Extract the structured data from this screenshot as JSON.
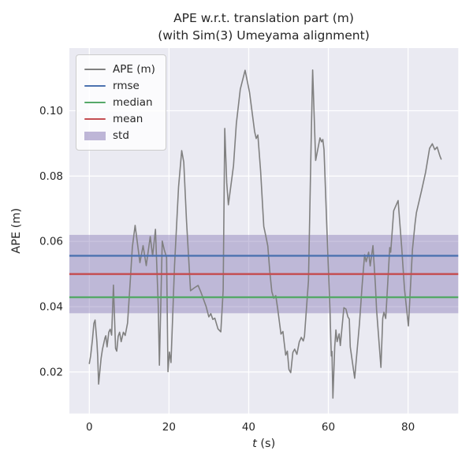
{
  "colors": {
    "figure_bg": "#ffffff",
    "axes_bg": "#eaeaf2",
    "grid": "#ffffff",
    "text": "#262626",
    "ape_line": "#808080",
    "rmse": "#4c72b0",
    "median": "#55a868",
    "mean": "#c44e52",
    "std": "#8172b2"
  },
  "legend": {
    "entries": [
      {
        "label": "APE (m)",
        "color": "#808080",
        "swatch": "line",
        "thickness": 2
      },
      {
        "label": "rmse",
        "color": "#4c72b0",
        "swatch": "line",
        "thickness": 2.5
      },
      {
        "label": "median",
        "color": "#55a868",
        "swatch": "line",
        "thickness": 2.5
      },
      {
        "label": "mean",
        "color": "#c44e52",
        "swatch": "line",
        "thickness": 2.5
      },
      {
        "label": "std",
        "color": "#8172b2",
        "swatch": "patch",
        "thickness": 11
      }
    ]
  },
  "chart_data": {
    "type": "line",
    "title": "APE w.r.t. translation part (m)",
    "subtitle": "(with Sim(3) Umeyama alignment)",
    "xlabel": "t (s)",
    "xlabel_parts": {
      "italic": "t",
      "rest": " (s)"
    },
    "ylabel": "APE (m)",
    "xlim": [
      -5.0,
      92.6
    ],
    "ylim": [
      0.0073,
      0.1192
    ],
    "grid": true,
    "legend_position": "upper left",
    "x_ticks": [
      {
        "value": 0,
        "label": "0"
      },
      {
        "value": 20,
        "label": "20"
      },
      {
        "value": 40,
        "label": "40"
      },
      {
        "value": 60,
        "label": "60"
      },
      {
        "value": 80,
        "label": "80"
      }
    ],
    "y_ticks": [
      {
        "value": 0.02,
        "label": "0.02"
      },
      {
        "value": 0.04,
        "label": "0.04"
      },
      {
        "value": 0.06,
        "label": "0.06"
      },
      {
        "value": 0.08,
        "label": "0.08"
      },
      {
        "value": 0.1,
        "label": "0.10"
      }
    ],
    "stats": {
      "rmse": 0.0556,
      "mean": 0.05,
      "median": 0.0429,
      "std": 0.012
    },
    "stat_lines": [
      {
        "name": "rmse",
        "value": 0.0556,
        "color": "#4c72b0"
      },
      {
        "name": "median",
        "value": 0.0429,
        "color": "#55a868"
      },
      {
        "name": "mean",
        "value": 0.05,
        "color": "#c44e52"
      }
    ],
    "std_band": {
      "low": 0.038,
      "high": 0.062,
      "color": "#8172b2",
      "opacity": 0.42
    },
    "series": [
      {
        "name": "APE (m)",
        "color": "#808080",
        "x": [
          0,
          0.35,
          0.8,
          1.15,
          1.45,
          1.9,
          2.1,
          2.35,
          2.95,
          3.3,
          3.95,
          4.15,
          4.45,
          4.9,
          5.25,
          5.6,
          6.05,
          6.6,
          6.9,
          7.25,
          7.6,
          8.0,
          8.55,
          9.0,
          9.6,
          10.2,
          10.8,
          11.5,
          12.7,
          13.5,
          14.3,
          15.3,
          15.9,
          16.6,
          17.3,
          17.6,
          18.3,
          18.8,
          19.4,
          19.75,
          20.1,
          20.5,
          21.4,
          22.4,
          23.2,
          23.7,
          24.4,
          25.4,
          26.4,
          27.3,
          28.0,
          28.65,
          29.3,
          30.0,
          30.5,
          31.0,
          31.5,
          32.3,
          33.0,
          33.6,
          34.0,
          34.5,
          34.9,
          36.2,
          36.9,
          37.9,
          39.1,
          40.2,
          41.5,
          41.9,
          42.3,
          43.0,
          43.8,
          44.35,
          44.8,
          45.3,
          45.8,
          46.3,
          46.8,
          47.3,
          48.1,
          48.6,
          48.9,
          49.3,
          49.7,
          50.1,
          50.55,
          51.1,
          51.55,
          52.1,
          52.7,
          53.2,
          53.7,
          54.0,
          55.0,
          55.7,
          56.05,
          56.8,
          57.9,
          58.3,
          58.6,
          58.9,
          59.9,
          60.4,
          60.6,
          60.75,
          60.9,
          61.15,
          61.6,
          61.9,
          62.2,
          62.7,
          63.0,
          63.9,
          64.4,
          64.9,
          65.25,
          65.5,
          66.6,
          67.8,
          68.5,
          69.1,
          69.5,
          70.1,
          70.5,
          71.2,
          71.8,
          72.1,
          73.2,
          73.65,
          73.95,
          74.4,
          75.4,
          75.65,
          76.4,
          77.5,
          78.4,
          79.1,
          80.1,
          81.1,
          81.75,
          82.1,
          83.4,
          84.4,
          85.4,
          86.1,
          86.7,
          87.3,
          88.0,
          88.3
        ],
        "y": [
          0.0226,
          0.025,
          0.03,
          0.0349,
          0.0359,
          0.0293,
          0.0249,
          0.0163,
          0.0241,
          0.027,
          0.0305,
          0.0311,
          0.0277,
          0.0322,
          0.0331,
          0.0313,
          0.0466,
          0.0272,
          0.0264,
          0.0309,
          0.0322,
          0.0293,
          0.0322,
          0.0312,
          0.035,
          0.0462,
          0.0583,
          0.0649,
          0.0535,
          0.0587,
          0.0526,
          0.0615,
          0.0555,
          0.0637,
          0.0406,
          0.0221,
          0.0601,
          0.0575,
          0.0551,
          0.0201,
          0.0261,
          0.0229,
          0.0526,
          0.0767,
          0.0878,
          0.0843,
          0.0662,
          0.0449,
          0.0458,
          0.0465,
          0.0445,
          0.0423,
          0.0401,
          0.0369,
          0.0379,
          0.0361,
          0.0365,
          0.0332,
          0.0323,
          0.045,
          0.0946,
          0.078,
          0.0712,
          0.0832,
          0.0961,
          0.1066,
          0.1124,
          0.1057,
          0.0936,
          0.0915,
          0.0926,
          0.0815,
          0.0646,
          0.0614,
          0.0586,
          0.0509,
          0.0446,
          0.0426,
          0.0434,
          0.0393,
          0.0316,
          0.0324,
          0.0292,
          0.0252,
          0.0264,
          0.0208,
          0.0198,
          0.026,
          0.027,
          0.0254,
          0.0292,
          0.0306,
          0.0295,
          0.0309,
          0.048,
          0.092,
          0.1125,
          0.0848,
          0.0917,
          0.0905,
          0.0912,
          0.0881,
          0.0551,
          0.039,
          0.0301,
          0.0249,
          0.0263,
          0.012,
          0.0277,
          0.0329,
          0.0293,
          0.0317,
          0.0281,
          0.0397,
          0.0393,
          0.0369,
          0.0362,
          0.0277,
          0.0181,
          0.0349,
          0.047,
          0.0559,
          0.0538,
          0.0567,
          0.0525,
          0.0587,
          0.0466,
          0.039,
          0.0214,
          0.0365,
          0.0383,
          0.0364,
          0.0581,
          0.0567,
          0.0694,
          0.0725,
          0.0583,
          0.0454,
          0.0341,
          0.0575,
          0.0655,
          0.0688,
          0.0756,
          0.0812,
          0.0885,
          0.0899,
          0.0881,
          0.0889,
          0.0861,
          0.0852
        ]
      }
    ]
  }
}
